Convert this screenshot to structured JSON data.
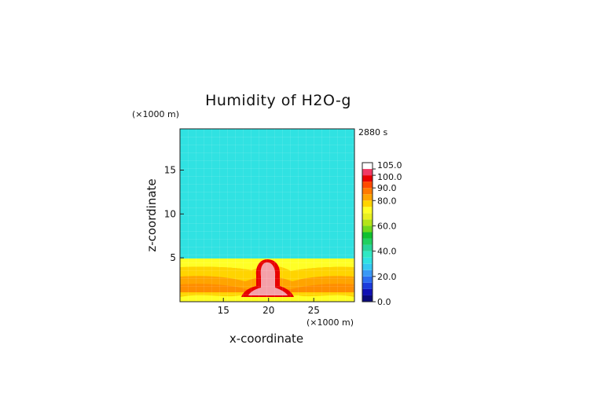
{
  "chart_data": {
    "type": "heatmap",
    "title": "Humidity of H2O-g",
    "time_label": "2880 s",
    "xlabel": "x-coordinate",
    "ylabel": "z-coordinate",
    "x_unit": "(×1000 m)",
    "y_unit": "(×1000 m)",
    "xlim": [
      10.2,
      29.5
    ],
    "ylim": [
      0,
      19.7
    ],
    "x_ticks": [
      15,
      20,
      25
    ],
    "y_ticks": [
      5,
      10,
      15
    ],
    "colorbar": {
      "tick_labels": [
        "0.0",
        "20.0",
        "40.0",
        "60.0",
        "80.0",
        "90.0",
        "100.0",
        "105.0"
      ],
      "levels": [
        0,
        5,
        10,
        15,
        20,
        25,
        30,
        35,
        40,
        45,
        50,
        55,
        60,
        65,
        70,
        75,
        80,
        85,
        90,
        95,
        100,
        105,
        110
      ],
      "colors": [
        "#0a0a7a",
        "#1010b4",
        "#1c3cdc",
        "#2c6cf0",
        "#3a98f5",
        "#36c8f2",
        "#30e2e2",
        "#30e8c4",
        "#28d49a",
        "#20d060",
        "#10c030",
        "#70d81c",
        "#b4e418",
        "#e8f020",
        "#ffff26",
        "#ffd400",
        "#ffa400",
        "#ff7a00",
        "#ff4a00",
        "#e80000",
        "#f03a64",
        "#ffffff"
      ]
    },
    "regions": {
      "upper_layer": {
        "z_range": [
          4.9,
          19.7
        ],
        "value": 45
      },
      "boundary_layer": {
        "z_range": [
          0,
          4.9
        ],
        "value": "75–95"
      },
      "plume": {
        "center_x": 20,
        "z_range": [
          0.5,
          4.8
        ],
        "value": ">100"
      }
    }
  }
}
